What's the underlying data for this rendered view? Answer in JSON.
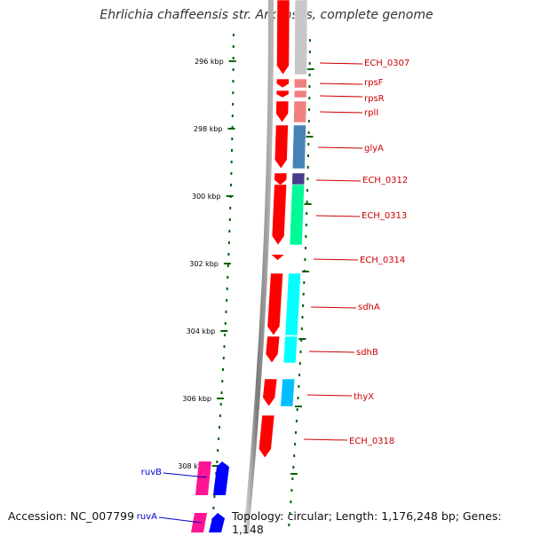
{
  "title": "Ehrlichia chaffeensis str. Arkansas, complete genome",
  "footer": {
    "accession": "Accession: NC_007799",
    "topology": "Topology: circular; Length: 1,176,248 bp; Genes: 1,148"
  },
  "ticks": [
    "296 kbp",
    "298 kbp",
    "300 kbp",
    "302 kbp",
    "304 kbp",
    "306 kbp",
    "308 kbp"
  ],
  "genes": [
    {
      "label": "ECH_0307",
      "color": "#c8c8c8",
      "side": "right"
    },
    {
      "label": "rpsF",
      "color": "#f08080",
      "side": "right"
    },
    {
      "label": "rpsR",
      "color": "#f08080",
      "side": "right"
    },
    {
      "label": "rplI",
      "color": "#f08080",
      "side": "right"
    },
    {
      "label": "glyA",
      "color": "#4682b4",
      "side": "right"
    },
    {
      "label": "ECH_0312",
      "color": "#483d8b",
      "side": "right"
    },
    {
      "label": "ECH_0313",
      "color": "#00fa9a",
      "side": "right"
    },
    {
      "label": "ECH_0314",
      "color": "#ff0000",
      "side": "right"
    },
    {
      "label": "sdhA",
      "color": "#00ffff",
      "side": "right"
    },
    {
      "label": "sdhB",
      "color": "#00ffff",
      "side": "right"
    },
    {
      "label": "thyX",
      "color": "#00bfff",
      "side": "right"
    },
    {
      "label": "ECH_0318",
      "color": "#ff0000",
      "side": "right"
    },
    {
      "label": "ruvB",
      "color": "#0000ff",
      "side": "left"
    },
    {
      "label": "ruvA",
      "color": "#0000ff",
      "side": "left"
    }
  ],
  "colors": {
    "strand": "#ff0000",
    "label_right": "#cc0000",
    "label_left": "#0000cc",
    "tick": "#006400",
    "backbone": "#808080"
  }
}
